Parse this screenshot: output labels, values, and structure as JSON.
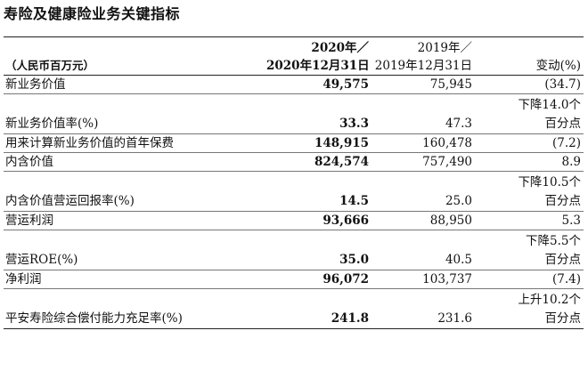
{
  "title": "寿险及健康险业务关键指标",
  "header": {
    "unit": "（人民币百万元）",
    "col2_line1": "2020年／",
    "col2_line2": "2020年12月31日",
    "col3_line1": "2019年／",
    "col3_line2": "2019年12月31日",
    "col4": "变动(%)"
  },
  "rows": [
    {
      "label": "新业务价值",
      "v2020": "49,575",
      "v2019": "75,945",
      "change": "(34.7)"
    },
    {
      "label": "新业务价值率(%)",
      "v2020": "33.3",
      "v2019": "47.3",
      "change_line1": "下降14.0个",
      "change_line2": "百分点"
    },
    {
      "label": "用来计算新业务价值的首年保费",
      "v2020": "148,915",
      "v2019": "160,478",
      "change": "(7.2)"
    },
    {
      "label": "内含价值",
      "v2020": "824,574",
      "v2019": "757,490",
      "change": "8.9"
    },
    {
      "label": "内含价值营运回报率(%)",
      "v2020": "14.5",
      "v2019": "25.0",
      "change_line1": "下降10.5个",
      "change_line2": "百分点"
    },
    {
      "label": "营运利润",
      "v2020": "93,666",
      "v2019": "88,950",
      "change": "5.3"
    },
    {
      "label": "营运ROE(%)",
      "v2020": "35.0",
      "v2019": "40.5",
      "change_line1": "下降5.5个",
      "change_line2": "百分点"
    },
    {
      "label": "净利润",
      "v2020": "96,072",
      "v2019": "103,737",
      "change": "(7.4)"
    },
    {
      "label": "平安寿险综合偿付能力充足率(%)",
      "v2020": "241.8",
      "v2019": "231.6",
      "change_line1": "上升10.2个",
      "change_line2": "百分点"
    }
  ]
}
